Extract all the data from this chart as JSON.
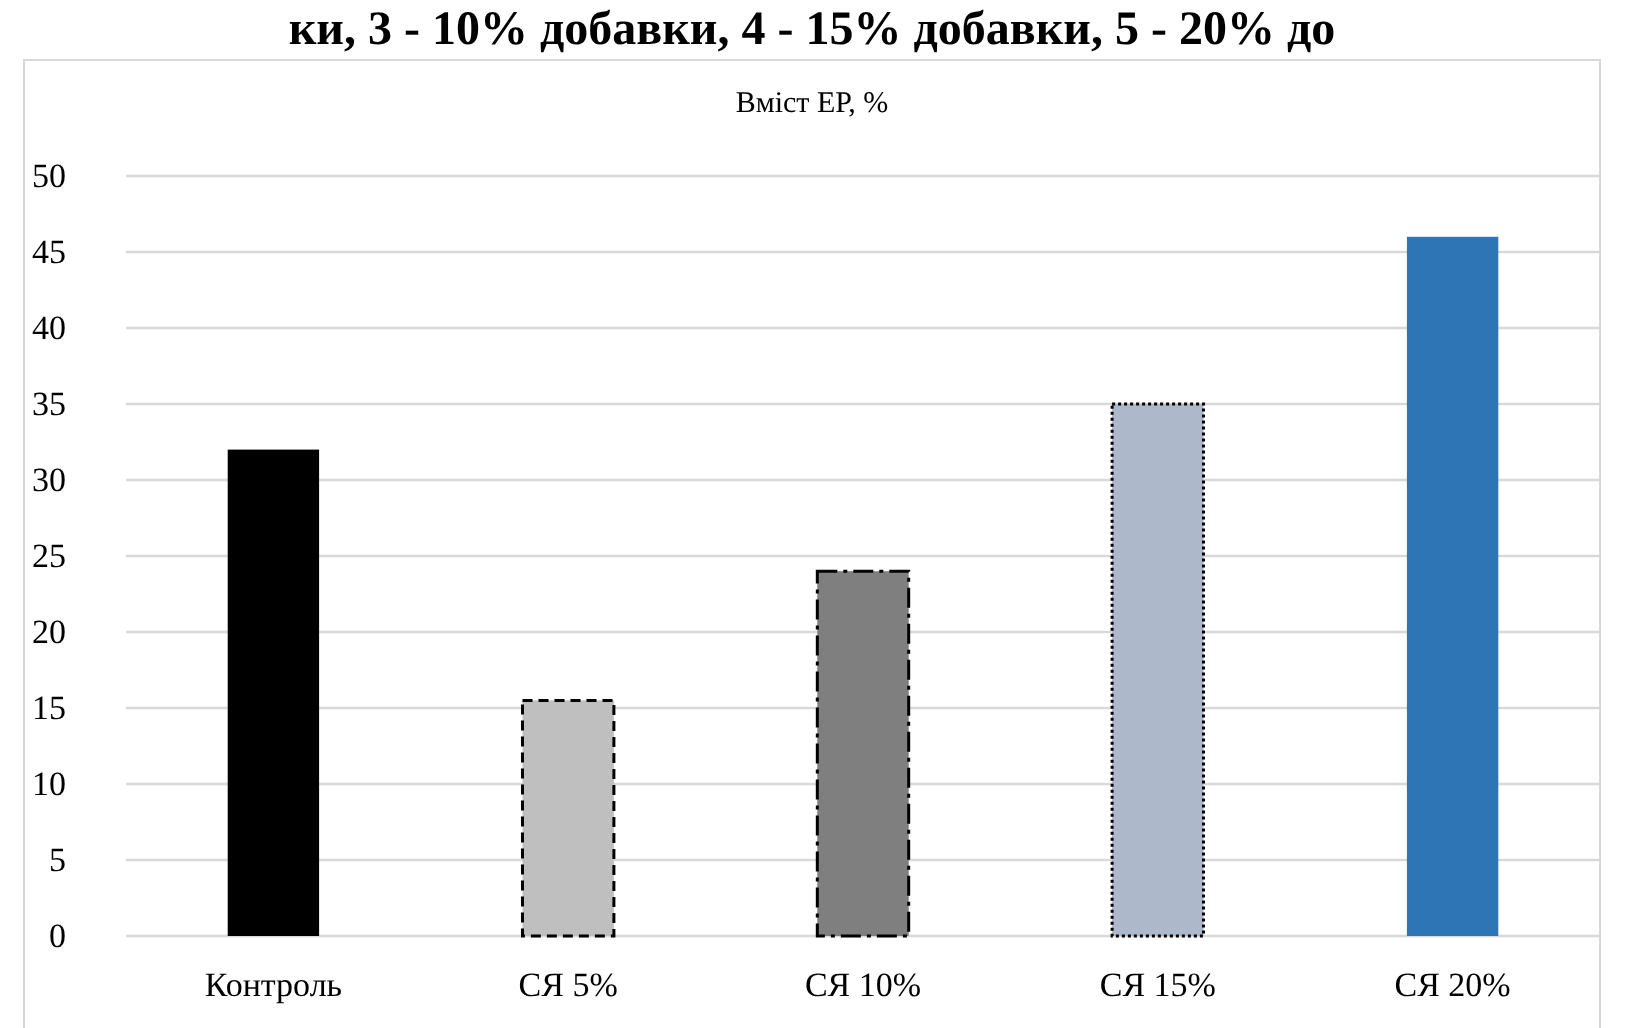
{
  "chart_data": {
    "type": "bar",
    "title": "Вміст ЕР, %",
    "annotations": [
      "ки, 3 - 10% добавки, 4 - 15% добавки, 5 - 20% до"
    ],
    "categories": [
      "Контроль",
      "СЯ 5%",
      "СЯ 10%",
      "СЯ 15%",
      "СЯ 20%"
    ],
    "values": [
      32,
      15.5,
      24,
      35,
      46
    ],
    "colors": [
      "#000000",
      "#bfbfbf",
      "#7f7f7f",
      "#adb9ca",
      "#2e75b6"
    ],
    "ylim": [
      0,
      50
    ],
    "yticks": [
      0,
      5,
      10,
      15,
      20,
      25,
      30,
      35,
      40,
      45,
      50
    ],
    "grid": "y"
  }
}
